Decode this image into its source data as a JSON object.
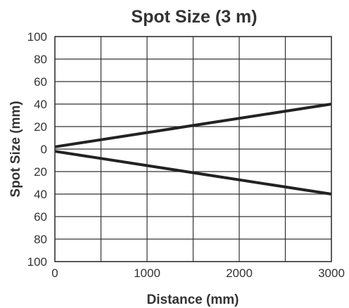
{
  "chart_data": {
    "type": "line",
    "title": "Spot Size (3 m)",
    "xlabel": "Distance (mm)",
    "ylabel": "Spot Size (mm)",
    "xlim": [
      0,
      3000
    ],
    "ylim": [
      -100,
      100
    ],
    "x_ticks": [
      0,
      1000,
      2000,
      3000
    ],
    "x_grid": [
      0,
      500,
      1000,
      1500,
      2000,
      2500,
      3000
    ],
    "y_ticks": [
      100,
      80,
      60,
      40,
      20,
      0,
      -20,
      -40,
      -60,
      -80,
      -100
    ],
    "y_tick_labels": [
      "100",
      "80",
      "60",
      "40",
      "20",
      "0",
      "20",
      "40",
      "60",
      "80",
      "100"
    ],
    "grid": true,
    "series": [
      {
        "x": [
          0,
          3000
        ],
        "y": [
          2,
          40
        ]
      },
      {
        "x": [
          0,
          3000
        ],
        "y": [
          -2,
          -40
        ]
      }
    ],
    "colors": {
      "line": "#222222",
      "grid": "#333333",
      "text": "#333333"
    }
  }
}
